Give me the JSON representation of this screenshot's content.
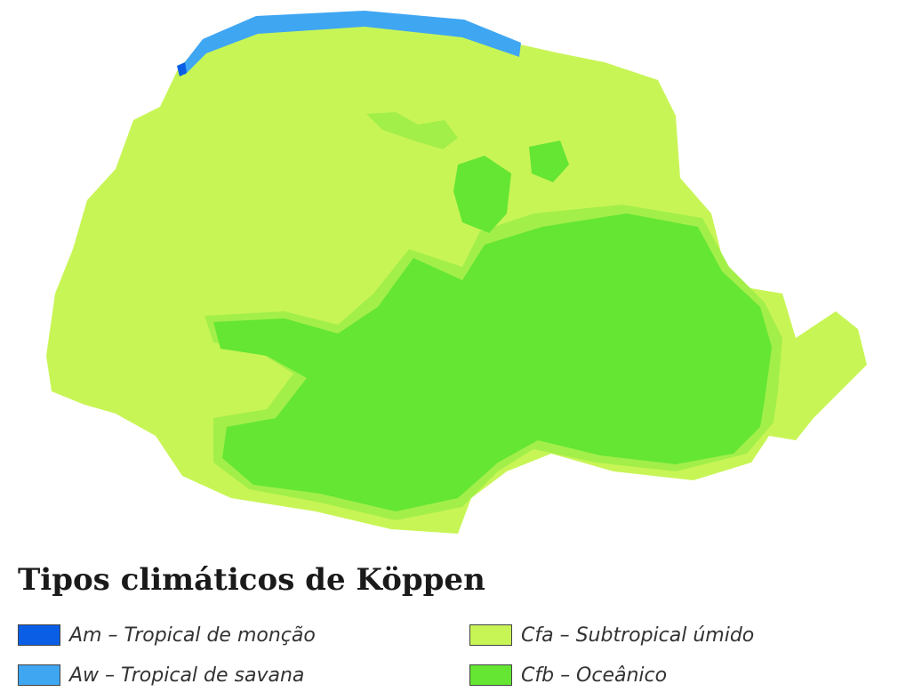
{
  "legend": {
    "title": "Tipos climáticos de Köppen",
    "items": [
      {
        "code": "Am",
        "label": "Am – Tropical de monção",
        "color": "#0a5ee6"
      },
      {
        "code": "Aw",
        "label": "Aw – Tropical de savana",
        "color": "#3fa6f2"
      },
      {
        "code": "Cfa",
        "label": "Cfa – Subtropical úmido",
        "color": "#c8f556"
      },
      {
        "code": "Cfb",
        "label": "Cfb – Oceânico",
        "color": "#64e633"
      }
    ]
  },
  "map": {
    "colors": {
      "cfa": "#c8f556",
      "cfb": "#64e633",
      "transition": "#a3ef4a",
      "aw": "#3fa6f2",
      "am": "#0a5ee6"
    }
  }
}
